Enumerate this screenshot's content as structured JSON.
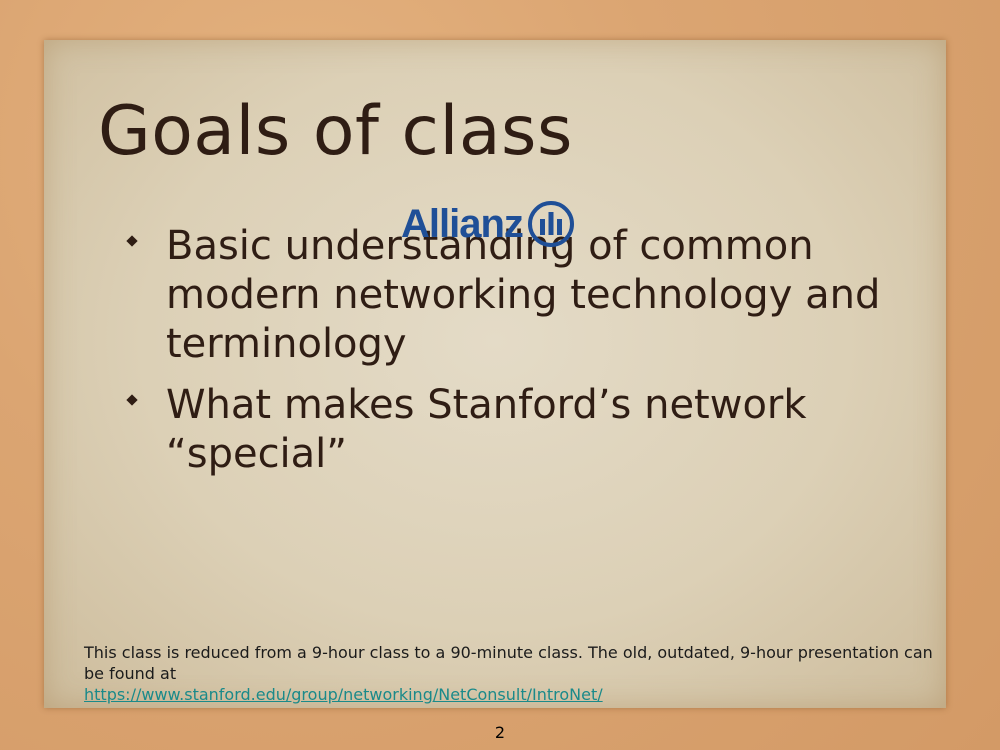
{
  "slide": {
    "title": "Goals of class",
    "bullets": [
      "Basic understanding of common modern networking technology and terminology",
      "What makes Stanford’s network “special”"
    ],
    "logo": {
      "text": "Allianz",
      "icon": "allianz-eagle-icon",
      "color": "#1f4f97"
    },
    "footnote": {
      "text": "This class is reduced from a 9-hour class to a 90-minute class. The old, outdated, 9-hour presentation can be found at",
      "link": "https://www.stanford.edu/group/networking/NetConsult/IntroNet/"
    },
    "page_number": "2"
  }
}
